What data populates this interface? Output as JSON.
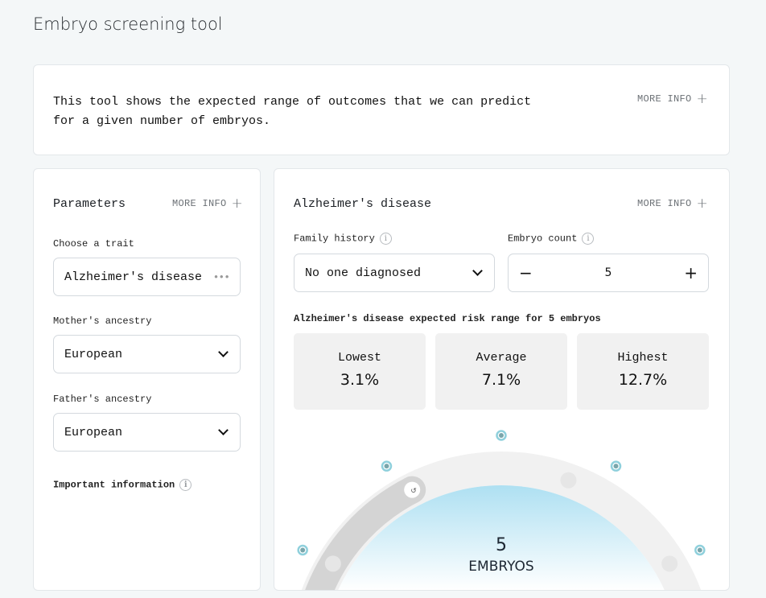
{
  "page_title": "Embryo screening tool",
  "intro": {
    "text": "This tool shows the expected range of outcomes that we can predict for a given number of embryos.",
    "more_info": "MORE INFO"
  },
  "parameters": {
    "heading": "Parameters",
    "more_info": "MORE INFO",
    "trait_label": "Choose a trait",
    "trait_value": "Alzheimer's disease",
    "mother_label": "Mother's ancestry",
    "mother_value": "European",
    "father_label": "Father's ancestry",
    "father_value": "European",
    "important": "Important information"
  },
  "result": {
    "heading": "Alzheimer's disease",
    "more_info": "MORE INFO",
    "family_label": "Family history",
    "family_value": "No one diagnosed",
    "count_label": "Embryo count",
    "count_value": "5",
    "range_caption": "Alzheimer's disease expected risk range for 5 embryos",
    "stats": [
      {
        "name": "Lowest",
        "value": "3.1%"
      },
      {
        "name": "Average",
        "value": "7.1%"
      },
      {
        "name": "Highest",
        "value": "12.7%"
      }
    ],
    "gauge": {
      "number": "5",
      "unit": "EMBRYOS",
      "selected_fraction": 0.35
    }
  },
  "colors": {
    "accent": "#8fd0dc",
    "gauge_track": "#f1f1f1",
    "gauge_fill": "#d4d4d4",
    "dome_top": "#aee0f2"
  }
}
